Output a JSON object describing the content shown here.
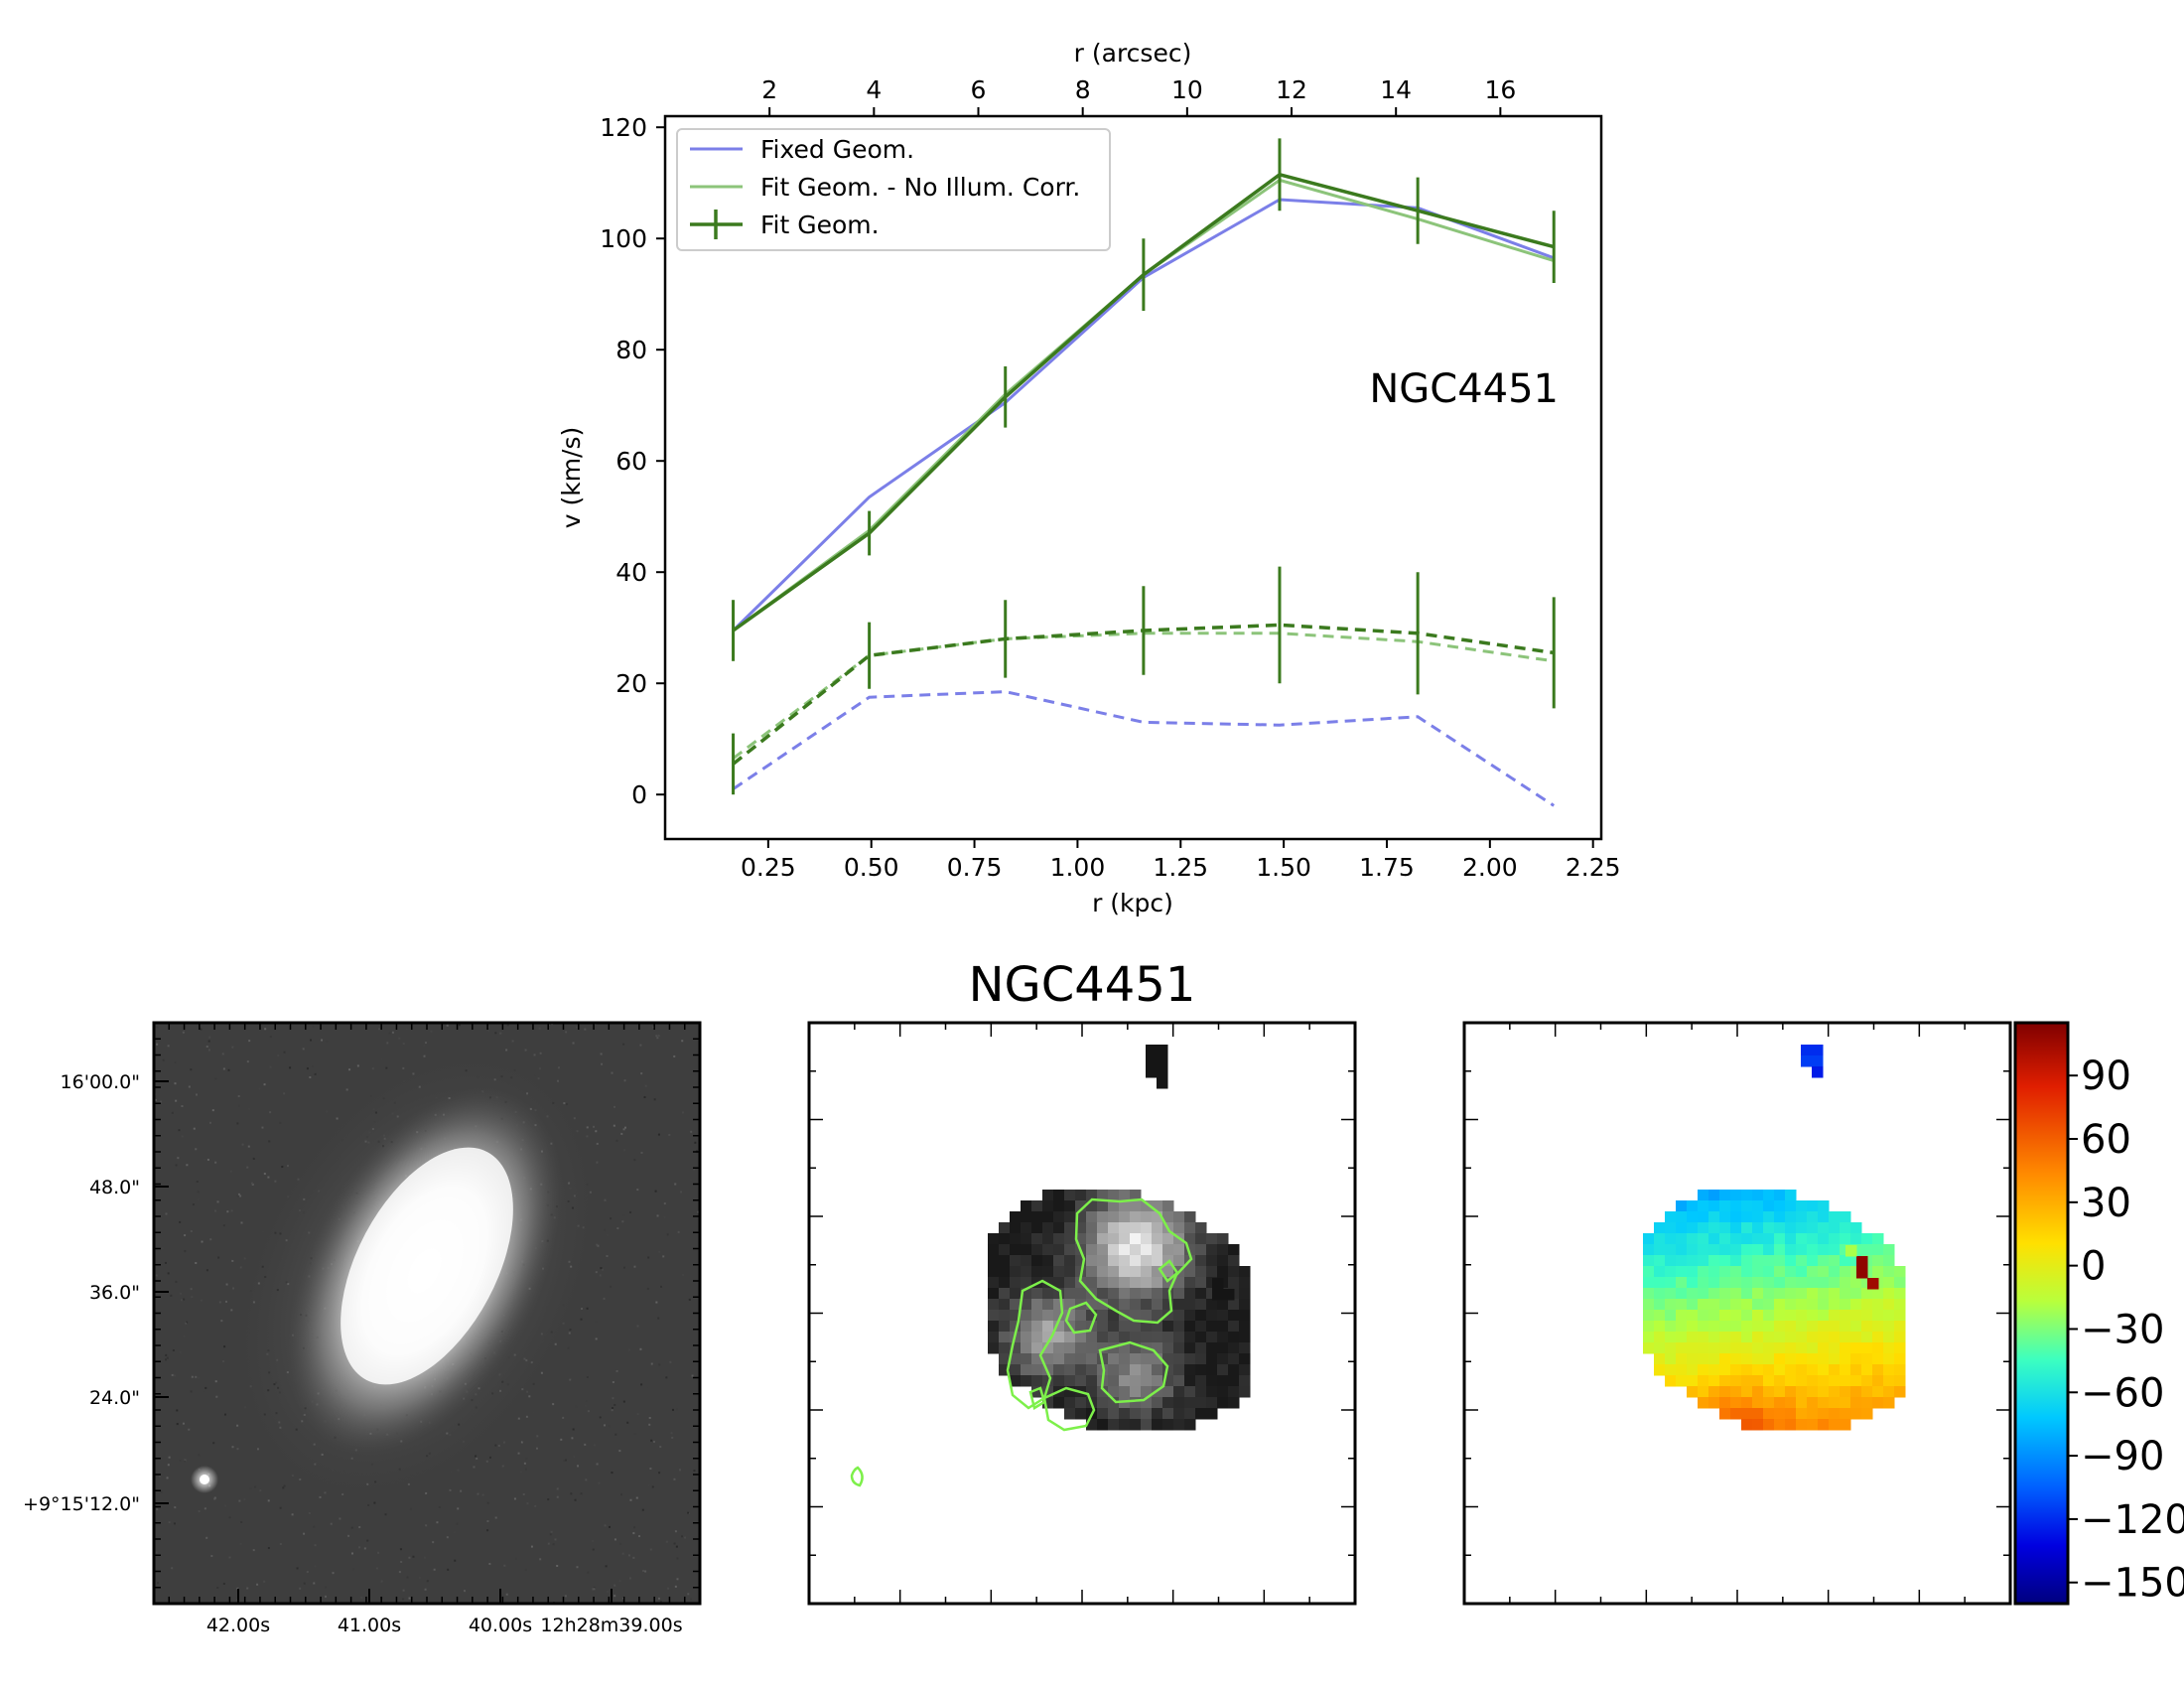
{
  "chart_data": [
    {
      "type": "line",
      "galaxy_label": "NGC4451",
      "xlabel": "r (kpc)",
      "xlabel_top": "r (arcsec)",
      "ylabel": "v (km/s)",
      "xlim": [
        0.0,
        2.27
      ],
      "ylim": [
        -8,
        122
      ],
      "xticks": [
        0.25,
        0.5,
        0.75,
        1.0,
        1.25,
        1.5,
        1.75,
        2.0,
        2.25
      ],
      "xtick_labels": [
        "0.25",
        "0.50",
        "0.75",
        "1.00",
        "1.25",
        "1.50",
        "1.75",
        "2.00",
        "2.25"
      ],
      "yticks": [
        0,
        20,
        40,
        60,
        80,
        100,
        120
      ],
      "ytick_labels": [
        "0",
        "20",
        "40",
        "60",
        "80",
        "100",
        "120"
      ],
      "top_axis_arcsec_per_kpc": 7.9,
      "top_ticks": [
        2,
        4,
        6,
        8,
        10,
        12,
        14,
        16
      ],
      "top_tick_labels": [
        "2",
        "4",
        "6",
        "8",
        "10",
        "12",
        "14",
        "16"
      ],
      "legend_position": "top-left",
      "x": [
        0.165,
        0.495,
        0.825,
        1.16,
        1.49,
        1.825,
        2.155
      ],
      "series": [
        {
          "name": "Fixed Geom.",
          "color": "#7b7fe8",
          "legend": true,
          "values": [
            29.5,
            53.5,
            70.5,
            93.0,
            107.0,
            105.5,
            96.5
          ],
          "dash": false,
          "errors": null
        },
        {
          "name": "Fit Geom. - No Illum. Corr.",
          "color": "#8cc47a",
          "legend": true,
          "values": [
            29.5,
            47.5,
            72.0,
            93.5,
            110.5,
            103.5,
            96.0
          ],
          "dash": false,
          "errors": null
        },
        {
          "name": "Fit Geom.",
          "color": "#3b7a1e",
          "legend": true,
          "values": [
            29.5,
            47.0,
            71.5,
            93.5,
            111.5,
            105.0,
            98.5
          ],
          "dash": false,
          "errors": [
            5.5,
            4.0,
            5.5,
            6.5,
            6.5,
            6.0,
            6.5
          ]
        },
        {
          "name": "Fixed Geom. (dispersion)",
          "color": "#7b7fe8",
          "legend": false,
          "values": [
            1.0,
            17.5,
            18.5,
            13.0,
            12.5,
            14.0,
            -2.0
          ],
          "dash": true,
          "errors": null
        },
        {
          "name": "Fit Geom. - No Illum. Corr. (dispersion)",
          "color": "#8cc47a",
          "legend": false,
          "values": [
            6.5,
            25.0,
            28.0,
            29.0,
            29.0,
            27.5,
            24.0
          ],
          "dash": true,
          "errors": null
        },
        {
          "name": "Fit Geom. (dispersion)",
          "color": "#3b7a1e",
          "legend": false,
          "values": [
            5.5,
            25.0,
            28.0,
            29.5,
            30.5,
            29.0,
            25.5
          ],
          "dash": true,
          "errors": [
            5.5,
            6.0,
            7.0,
            8.0,
            10.5,
            11.0,
            10.0
          ]
        }
      ]
    },
    {
      "type": "heatmap",
      "panel": "optical-image",
      "ytick_labels": [
        "16'00.0\"",
        "48.0\"",
        "36.0\"",
        "24.0\"",
        "+9°15'12.0\""
      ],
      "xtick_labels": [
        "42.00s",
        "41.00s",
        "40.00s",
        "12h28m39.00s"
      ]
    },
    {
      "type": "heatmap",
      "panel": "moment0-map",
      "title": "NGC4451"
    },
    {
      "type": "heatmap",
      "panel": "velocity-map",
      "colorbar_ticks": [
        90,
        60,
        30,
        0,
        -30,
        -60,
        -90,
        -120,
        -150
      ],
      "colorbar_tick_labels": [
        "90",
        "60",
        "30",
        "0",
        "−30",
        "−60",
        "−90",
        "−120",
        "−150"
      ],
      "colorbar_range": [
        -160,
        115
      ]
    }
  ]
}
